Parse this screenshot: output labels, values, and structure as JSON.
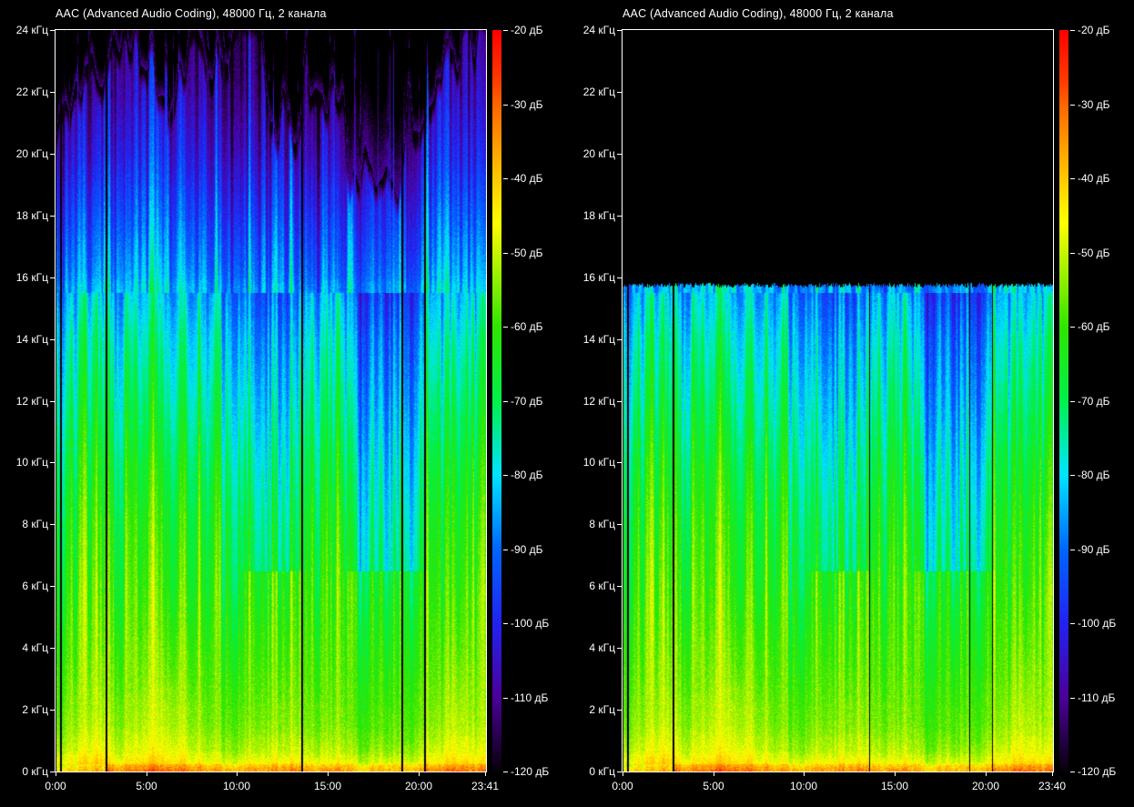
{
  "app": {
    "background": "#000000"
  },
  "chart_data": {
    "type": "heatmap",
    "subtype": "audio-spectrogram",
    "panels": [
      {
        "title": "AAC (Advanced Audio Coding), 48000 Гц, 2 канала",
        "duration_label": "23:41",
        "duration_min": 23.683,
        "x_tick_labels": [
          "0:00",
          "5:00",
          "10:00",
          "15:00",
          "20:00",
          "23:41"
        ],
        "x_tick_minutes": [
          0,
          5,
          10,
          15,
          20,
          23.683
        ],
        "lowpass_cutoff_khz": null,
        "content_max_khz": 24
      },
      {
        "title": "AAC (Advanced Audio Coding), 48000 Гц, 2 канала",
        "duration_label": "23:40",
        "duration_min": 23.667,
        "x_tick_labels": [
          "0:00",
          "5:00",
          "10:00",
          "15:00",
          "20:00",
          "23:40"
        ],
        "x_tick_minutes": [
          0,
          5,
          10,
          15,
          20,
          23.667
        ],
        "lowpass_cutoff_khz": 15.75,
        "content_max_khz": 15.75
      }
    ],
    "y_axis": {
      "unit": "кГц",
      "range_khz": [
        0,
        24
      ],
      "tick_khz": [
        24,
        22,
        20,
        18,
        16,
        14,
        12,
        10,
        8,
        6,
        4,
        2,
        0
      ],
      "tick_labels": [
        "24 кГц",
        "22 кГц",
        "20 кГц",
        "18 кГц",
        "16 кГц",
        "14 кГц",
        "12 кГц",
        "10 кГц",
        "8 кГц",
        "6 кГц",
        "4 кГц",
        "2 кГц",
        "0 кГц"
      ]
    },
    "colorbar": {
      "unit": "дБ",
      "range_db": [
        -120,
        -20
      ],
      "tick_db": [
        -20,
        -30,
        -40,
        -50,
        -60,
        -70,
        -80,
        -90,
        -100,
        -110,
        -120
      ],
      "tick_labels": [
        "-20 дБ",
        "-30 дБ",
        "-40 дБ",
        "-50 дБ",
        "-60 дБ",
        "-70 дБ",
        "-80 дБ",
        "-90 дБ",
        "-100 дБ",
        "-110 дБ",
        "-120 дБ"
      ],
      "stops": [
        {
          "t": 0.0,
          "color": "#ff0000"
        },
        {
          "t": 0.07,
          "color": "#ff3c00"
        },
        {
          "t": 0.1,
          "color": "#ff6400"
        },
        {
          "t": 0.2,
          "color": "#ffc800"
        },
        {
          "t": 0.26,
          "color": "#ffff00"
        },
        {
          "t": 0.32,
          "color": "#aaf200"
        },
        {
          "t": 0.4,
          "color": "#2ee600"
        },
        {
          "t": 0.5,
          "color": "#00f04a"
        },
        {
          "t": 0.6,
          "color": "#00e4ff"
        },
        {
          "t": 0.7,
          "color": "#0066ff"
        },
        {
          "t": 0.8,
          "color": "#2222f0"
        },
        {
          "t": 0.9,
          "color": "#4b0099"
        },
        {
          "t": 1.0,
          "color": "#070009"
        }
      ]
    },
    "render_model": {
      "seed": 7,
      "base_db": -58,
      "track_gaps_min": [
        0.27,
        2.77,
        13.55,
        19.05,
        20.3
      ],
      "quiet_sections_min": [
        [
          10.4,
          13.6
        ],
        [
          16.0,
          20.2
        ]
      ],
      "cool_intro_until_min": 2.77,
      "haze_section_min": [
        16.0,
        19.2
      ],
      "hf_top_khz_breakpoints": [
        [
          0,
          20.5
        ],
        [
          0.8,
          21.5
        ],
        [
          1.6,
          23.3
        ],
        [
          2.4,
          22.8
        ],
        [
          3,
          23.6
        ],
        [
          5,
          23.6
        ],
        [
          5.6,
          21.8
        ],
        [
          6.5,
          21.5
        ],
        [
          7.2,
          23.2
        ],
        [
          9,
          23.4
        ],
        [
          9.6,
          23.9
        ],
        [
          11.3,
          23.9
        ],
        [
          11.8,
          21.3
        ],
        [
          13.2,
          21.0
        ],
        [
          13.8,
          22.6
        ],
        [
          15.5,
          22.4
        ],
        [
          16.2,
          19.8
        ],
        [
          18.8,
          19.6
        ],
        [
          19.4,
          21.2
        ],
        [
          20.8,
          21.4
        ],
        [
          21.3,
          23.6
        ],
        [
          23.7,
          23.4
        ]
      ],
      "freq_profile_db": [
        [
          0,
          22
        ],
        [
          0.1,
          20
        ],
        [
          0.3,
          14
        ],
        [
          0.7,
          9
        ],
        [
          1.5,
          5
        ],
        [
          3,
          2.5
        ],
        [
          5,
          0
        ],
        [
          8,
          -4
        ],
        [
          10,
          -8
        ],
        [
          12,
          -13
        ],
        [
          14,
          -18
        ],
        [
          15.8,
          -25
        ],
        [
          16,
          -27
        ],
        [
          18,
          -35
        ],
        [
          20,
          -43
        ],
        [
          22,
          -49
        ],
        [
          24,
          -53
        ]
      ]
    }
  }
}
